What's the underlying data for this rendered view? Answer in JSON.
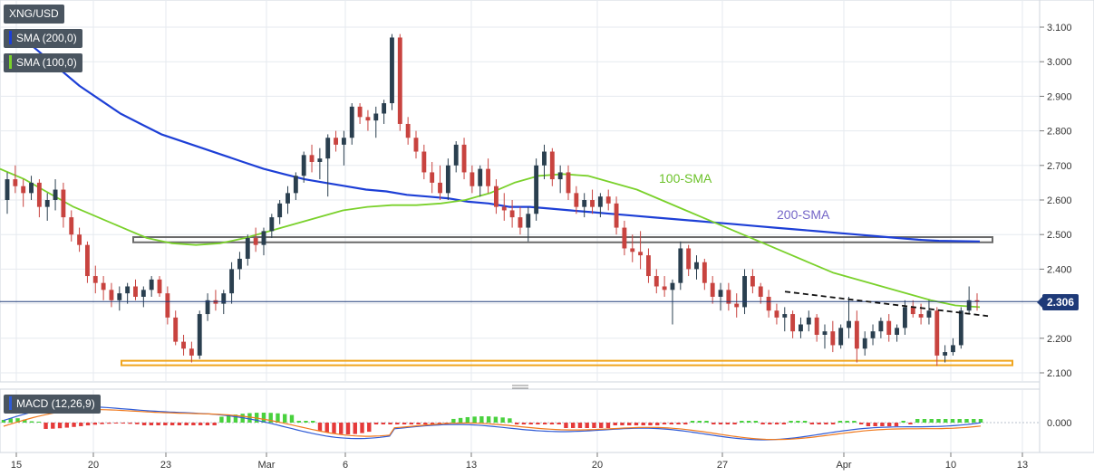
{
  "symbol": "XNG/USD",
  "indicators": [
    {
      "label": "SMA (200,0)",
      "color": "#1d3fd6"
    },
    {
      "label": "SMA (100,0)",
      "color": "#7ad12b"
    }
  ],
  "macd_label": "MACD (12,26,9)",
  "current_price_label": "2.306",
  "annotations": {
    "sma100": "100-SMA",
    "sma200": "200-SMA"
  },
  "colors": {
    "up": "#2a3f4f",
    "down": "#c8433f",
    "sma200": "#1d3fd6",
    "sma100": "#7ad12b",
    "price_line": "#1e3a78",
    "support_zone": "#f0a51e",
    "resistance_zone": "#6a6a6a",
    "macd_pos": "#49d13e",
    "macd_neg": "#e53a3a"
  },
  "chart_data": {
    "type": "candlestick",
    "ylim": [
      2.075,
      3.13
    ],
    "y_ticks": [
      "3.100",
      "3.000",
      "2.900",
      "2.800",
      "2.700",
      "2.600",
      "2.500",
      "2.400",
      "2.300",
      "2.200",
      "2.100"
    ],
    "x_ticks": [
      "15",
      "20",
      "23",
      "Mar",
      "6",
      "13",
      "20",
      "27",
      "Apr",
      "10",
      "13"
    ],
    "current_price": 2.306,
    "resistance_zone": [
      2.475,
      2.49
    ],
    "support_zone": [
      2.122,
      2.135
    ],
    "trendline": {
      "from": [
        0.66,
        2.335
      ],
      "to": [
        0.95,
        2.28
      ]
    },
    "candles": [
      [
        2.6,
        2.68,
        2.56,
        2.66
      ],
      [
        2.66,
        2.7,
        2.62,
        2.64
      ],
      [
        2.64,
        2.66,
        2.58,
        2.62
      ],
      [
        2.62,
        2.67,
        2.6,
        2.65
      ],
      [
        2.65,
        2.66,
        2.55,
        2.58
      ],
      [
        2.58,
        2.62,
        2.54,
        2.6
      ],
      [
        2.6,
        2.66,
        2.57,
        2.63
      ],
      [
        2.63,
        2.65,
        2.52,
        2.55
      ],
      [
        2.55,
        2.57,
        2.48,
        2.5
      ],
      [
        2.5,
        2.52,
        2.45,
        2.47
      ],
      [
        2.47,
        2.48,
        2.36,
        2.38
      ],
      [
        2.38,
        2.41,
        2.33,
        2.36
      ],
      [
        2.36,
        2.38,
        2.31,
        2.34
      ],
      [
        2.34,
        2.36,
        2.29,
        2.31
      ],
      [
        2.31,
        2.35,
        2.28,
        2.33
      ],
      [
        2.33,
        2.36,
        2.3,
        2.35
      ],
      [
        2.35,
        2.37,
        2.31,
        2.32
      ],
      [
        2.32,
        2.35,
        2.29,
        2.34
      ],
      [
        2.34,
        2.38,
        2.32,
        2.37
      ],
      [
        2.37,
        2.38,
        2.32,
        2.33
      ],
      [
        2.33,
        2.35,
        2.24,
        2.26
      ],
      [
        2.26,
        2.28,
        2.18,
        2.19
      ],
      [
        2.19,
        2.21,
        2.15,
        2.17
      ],
      [
        2.17,
        2.19,
        2.13,
        2.15
      ],
      [
        2.15,
        2.28,
        2.14,
        2.27
      ],
      [
        2.27,
        2.33,
        2.25,
        2.31
      ],
      [
        2.31,
        2.34,
        2.28,
        2.3
      ],
      [
        2.3,
        2.34,
        2.27,
        2.33
      ],
      [
        2.33,
        2.42,
        2.3,
        2.4
      ],
      [
        2.4,
        2.45,
        2.37,
        2.43
      ],
      [
        2.43,
        2.5,
        2.41,
        2.49
      ],
      [
        2.49,
        2.52,
        2.45,
        2.47
      ],
      [
        2.47,
        2.52,
        2.44,
        2.51
      ],
      [
        2.51,
        2.56,
        2.49,
        2.55
      ],
      [
        2.55,
        2.6,
        2.53,
        2.59
      ],
      [
        2.59,
        2.64,
        2.56,
        2.62
      ],
      [
        2.62,
        2.68,
        2.6,
        2.67
      ],
      [
        2.67,
        2.74,
        2.65,
        2.73
      ],
      [
        2.73,
        2.76,
        2.68,
        2.71
      ],
      [
        2.71,
        2.75,
        2.66,
        2.72
      ],
      [
        2.72,
        2.79,
        2.61,
        2.78
      ],
      [
        2.78,
        2.8,
        2.74,
        2.76
      ],
      [
        2.76,
        2.8,
        2.7,
        2.78
      ],
      [
        2.78,
        2.88,
        2.76,
        2.87
      ],
      [
        2.87,
        2.88,
        2.82,
        2.84
      ],
      [
        2.84,
        2.86,
        2.8,
        2.83
      ],
      [
        2.83,
        2.87,
        2.78,
        2.85
      ],
      [
        2.85,
        2.89,
        2.82,
        2.88
      ],
      [
        2.88,
        3.08,
        2.86,
        3.07
      ],
      [
        3.07,
        3.08,
        2.8,
        2.82
      ],
      [
        2.82,
        2.84,
        2.76,
        2.78
      ],
      [
        2.78,
        2.8,
        2.72,
        2.74
      ],
      [
        2.74,
        2.76,
        2.66,
        2.68
      ],
      [
        2.68,
        2.71,
        2.62,
        2.65
      ],
      [
        2.65,
        2.7,
        2.6,
        2.62
      ],
      [
        2.62,
        2.72,
        2.6,
        2.7
      ],
      [
        2.7,
        2.77,
        2.68,
        2.76
      ],
      [
        2.76,
        2.78,
        2.66,
        2.68
      ],
      [
        2.68,
        2.7,
        2.62,
        2.64
      ],
      [
        2.64,
        2.7,
        2.61,
        2.69
      ],
      [
        2.69,
        2.72,
        2.62,
        2.64
      ],
      [
        2.64,
        2.66,
        2.56,
        2.58
      ],
      [
        2.58,
        2.62,
        2.54,
        2.57
      ],
      [
        2.57,
        2.6,
        2.52,
        2.55
      ],
      [
        2.55,
        2.58,
        2.5,
        2.52
      ],
      [
        2.52,
        2.58,
        2.48,
        2.56
      ],
      [
        2.56,
        2.72,
        2.54,
        2.7
      ],
      [
        2.7,
        2.76,
        2.66,
        2.74
      ],
      [
        2.74,
        2.75,
        2.64,
        2.66
      ],
      [
        2.66,
        2.7,
        2.62,
        2.68
      ],
      [
        2.68,
        2.7,
        2.6,
        2.62
      ],
      [
        2.62,
        2.64,
        2.56,
        2.58
      ],
      [
        2.58,
        2.62,
        2.55,
        2.6
      ],
      [
        2.6,
        2.63,
        2.56,
        2.58
      ],
      [
        2.58,
        2.62,
        2.55,
        2.61
      ],
      [
        2.61,
        2.63,
        2.57,
        2.59
      ],
      [
        2.59,
        2.61,
        2.5,
        2.52
      ],
      [
        2.52,
        2.54,
        2.44,
        2.46
      ],
      [
        2.46,
        2.5,
        2.42,
        2.45
      ],
      [
        2.45,
        2.51,
        2.4,
        2.44
      ],
      [
        2.44,
        2.46,
        2.36,
        2.38
      ],
      [
        2.38,
        2.4,
        2.33,
        2.35
      ],
      [
        2.35,
        2.38,
        2.32,
        2.34
      ],
      [
        2.34,
        2.37,
        2.24,
        2.36
      ],
      [
        2.36,
        2.48,
        2.34,
        2.46
      ],
      [
        2.46,
        2.47,
        2.38,
        2.4
      ],
      [
        2.4,
        2.44,
        2.37,
        2.42
      ],
      [
        2.42,
        2.43,
        2.34,
        2.36
      ],
      [
        2.36,
        2.38,
        2.3,
        2.32
      ],
      [
        2.32,
        2.36,
        2.28,
        2.34
      ],
      [
        2.34,
        2.36,
        2.28,
        2.3
      ],
      [
        2.3,
        2.33,
        2.26,
        2.29
      ],
      [
        2.29,
        2.4,
        2.27,
        2.38
      ],
      [
        2.38,
        2.4,
        2.33,
        2.35
      ],
      [
        2.35,
        2.36,
        2.3,
        2.32
      ],
      [
        2.32,
        2.34,
        2.26,
        2.28
      ],
      [
        2.28,
        2.3,
        2.24,
        2.26
      ],
      [
        2.26,
        2.29,
        2.22,
        2.27
      ],
      [
        2.27,
        2.28,
        2.2,
        2.22
      ],
      [
        2.22,
        2.26,
        2.2,
        2.24
      ],
      [
        2.24,
        2.28,
        2.22,
        2.26
      ],
      [
        2.26,
        2.27,
        2.19,
        2.21
      ],
      [
        2.21,
        2.24,
        2.17,
        2.22
      ],
      [
        2.22,
        2.25,
        2.16,
        2.18
      ],
      [
        2.18,
        2.24,
        2.17,
        2.23
      ],
      [
        2.23,
        2.32,
        2.2,
        2.25
      ],
      [
        2.25,
        2.28,
        2.13,
        2.17
      ],
      [
        2.17,
        2.22,
        2.15,
        2.2
      ],
      [
        2.2,
        2.24,
        2.18,
        2.22
      ],
      [
        2.22,
        2.26,
        2.2,
        2.25
      ],
      [
        2.25,
        2.27,
        2.19,
        2.21
      ],
      [
        2.21,
        2.24,
        2.19,
        2.23
      ],
      [
        2.23,
        2.31,
        2.21,
        2.29
      ],
      [
        2.29,
        2.31,
        2.26,
        2.27
      ],
      [
        2.27,
        2.3,
        2.24,
        2.26
      ],
      [
        2.26,
        2.31,
        2.24,
        2.28
      ],
      [
        2.28,
        2.29,
        2.12,
        2.15
      ],
      [
        2.15,
        2.18,
        2.13,
        2.16
      ],
      [
        2.16,
        2.2,
        2.15,
        2.18
      ],
      [
        2.18,
        2.29,
        2.17,
        2.28
      ],
      [
        2.28,
        2.35,
        2.27,
        2.31
      ],
      [
        2.31,
        2.33,
        2.28,
        2.306
      ]
    ],
    "sma200": [
      3.08,
      3.03,
      2.98,
      2.93,
      2.89,
      2.85,
      2.82,
      2.79,
      2.77,
      2.75,
      2.73,
      2.71,
      2.69,
      2.675,
      2.66,
      2.65,
      2.64,
      2.63,
      2.625,
      2.615,
      2.61,
      2.605,
      2.595,
      2.59,
      2.58,
      2.58,
      2.575,
      2.57,
      2.565,
      2.56,
      2.555,
      2.55,
      2.545,
      2.54,
      2.535,
      2.53,
      2.525,
      2.52,
      2.515,
      2.51,
      2.505,
      2.5,
      2.495,
      2.49,
      2.485,
      2.482,
      2.481,
      2.48
    ],
    "sma100": [
      2.69,
      2.66,
      2.62,
      2.58,
      2.55,
      2.52,
      2.49,
      2.475,
      2.47,
      2.475,
      2.49,
      2.51,
      2.53,
      2.55,
      2.57,
      2.58,
      2.585,
      2.585,
      2.59,
      2.6,
      2.62,
      2.65,
      2.67,
      2.675,
      2.67,
      2.65,
      2.63,
      2.6,
      2.57,
      2.54,
      2.51,
      2.48,
      2.45,
      2.42,
      2.39,
      2.37,
      2.35,
      2.33,
      2.31,
      2.295,
      2.29
    ],
    "macd": {
      "ylim": [
        -0.08,
        0.08
      ],
      "zero_label": "0.000"
    }
  }
}
